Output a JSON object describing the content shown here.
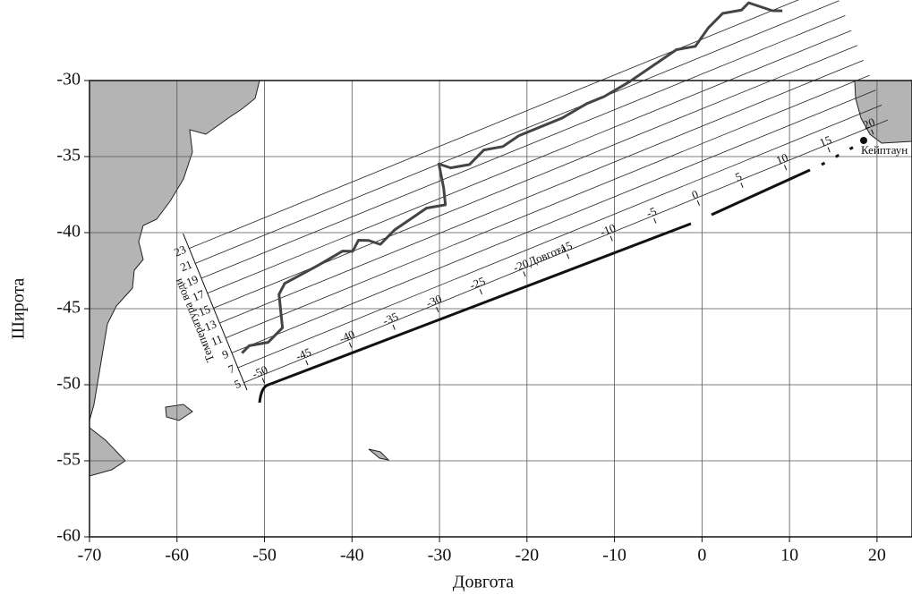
{
  "chart_data": {
    "type": "map",
    "xlabel": "Довгота",
    "ylabel": "Широта",
    "xlim": [
      -70,
      24
    ],
    "ylim": [
      -60,
      -30
    ],
    "xticks": [
      -70,
      -60,
      -50,
      -40,
      -30,
      -20,
      -10,
      0,
      10,
      20
    ],
    "yticks": [
      -60,
      -55,
      -50,
      -45,
      -40,
      -35,
      -30
    ],
    "grid": true,
    "annotation": "Кейптаун",
    "inset": {
      "type": "line",
      "xlabel": "Довгота",
      "ylabel": "Температура води",
      "xlim": [
        -52,
        22
      ],
      "ylim": [
        4,
        25
      ],
      "xticks": [
        -50,
        -45,
        -40,
        -35,
        -30,
        -25,
        -20,
        -15,
        -10,
        -5,
        0,
        5,
        10,
        15,
        20
      ],
      "yticks": [
        5,
        7,
        9,
        11,
        13,
        15,
        17,
        19,
        21,
        23
      ],
      "series": [
        {
          "color": "#444444",
          "x": [
            -51,
            -50,
            -48,
            -46,
            -45,
            -44,
            -40,
            -37,
            -36,
            -35,
            -34,
            -33,
            -31,
            -29,
            -27,
            -25,
            -24.5,
            -24,
            -23,
            -21,
            -19,
            -17,
            -15,
            -12,
            -10,
            -7,
            -5,
            -2,
            0,
            2,
            4,
            6,
            8,
            10,
            12,
            13,
            14,
            15,
            16
          ],
          "values": [
            8.5,
            9,
            8.5,
            9.5,
            13.5,
            14.5,
            15,
            15.5,
            15,
            16,
            15.5,
            14.5,
            15.5,
            16,
            16.5,
            16,
            18,
            21,
            20,
            19.5,
            20.5,
            20,
            20.5,
            20.5,
            20.5,
            21,
            21,
            21.5,
            22,
            22.5,
            23,
            22.5,
            24,
            25,
            24.5,
            25,
            24,
            23,
            22.5
          ]
        }
      ]
    }
  }
}
